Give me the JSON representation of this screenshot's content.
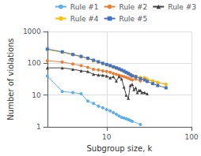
{
  "chart_data": {
    "type": "line",
    "xlabel": "Subgroup size, k",
    "ylabel": "Number of violations",
    "log": true,
    "xlim": [
      2,
      100
    ],
    "ylim": [
      1,
      1000
    ],
    "xticks": [
      10,
      100
    ],
    "yticks": [
      1,
      10,
      100,
      1000
    ],
    "grid": true,
    "legend": "upper right",
    "series": [
      {
        "name": "Rule #1",
        "color": "#5aafea",
        "marker": "circle",
        "x": [
          2,
          3,
          4,
          5,
          6,
          7,
          8,
          9,
          10,
          11,
          12,
          13,
          14,
          15,
          16,
          17,
          18,
          19,
          20,
          25
        ],
        "values": [
          40,
          13,
          12,
          11,
          6.5,
          5.5,
          4.5,
          4.0,
          3.5,
          3.2,
          2.8,
          2.5,
          2.2,
          2.0,
          1.9,
          1.8,
          1.7,
          1.6,
          1.5,
          1.2
        ]
      },
      {
        "name": "Rule #2",
        "color": "#ed7d31",
        "marker": "circle",
        "x": [
          2,
          3,
          4,
          5,
          6,
          7,
          8,
          9,
          10,
          11,
          12,
          13,
          14,
          15,
          16,
          17,
          18,
          19,
          20,
          22,
          25,
          28,
          30,
          35,
          40,
          50
        ],
        "values": [
          120,
          110,
          95,
          85,
          75,
          65,
          62,
          58,
          55,
          52,
          48,
          45,
          42,
          40,
          38,
          36,
          34,
          32,
          30,
          32,
          28,
          35,
          30,
          28,
          25,
          22
        ]
      },
      {
        "name": "Rule #3",
        "color": "#404040",
        "marker": "triangle",
        "x": [
          2,
          3,
          4,
          5,
          6,
          7,
          8,
          9,
          10,
          11,
          12,
          13,
          14,
          15,
          16,
          17,
          18,
          19,
          20,
          21,
          22,
          23,
          24,
          25,
          26,
          28,
          30
        ],
        "values": [
          72,
          72,
          65,
          58,
          55,
          45,
          43,
          42,
          40,
          35,
          38,
          28,
          38,
          32,
          18,
          10,
          8,
          20,
          22,
          15,
          17,
          12,
          14,
          14,
          12,
          12,
          11
        ]
      },
      {
        "name": "Rule #4",
        "color": "#ffc000",
        "marker": "circle",
        "x": [
          2,
          3,
          4,
          5,
          6,
          7,
          8,
          9,
          10,
          11,
          12,
          13,
          14,
          15,
          16,
          17,
          18,
          19,
          20,
          22,
          25,
          28,
          30,
          35,
          40,
          50
        ],
        "values": [
          270,
          220,
          185,
          160,
          140,
          120,
          108,
          98,
          90,
          82,
          75,
          70,
          65,
          60,
          55,
          52,
          48,
          45,
          42,
          40,
          36,
          34,
          32,
          28,
          25,
          22
        ]
      },
      {
        "name": "Rule #5",
        "color": "#4472c4",
        "marker": "square",
        "x": [
          2,
          3,
          4,
          5,
          6,
          7,
          8,
          9,
          10,
          11,
          12,
          13,
          14,
          15,
          16,
          17,
          18,
          19,
          20,
          22,
          25,
          28,
          30,
          35,
          40,
          50
        ],
        "values": [
          280,
          230,
          190,
          165,
          145,
          125,
          112,
          100,
          92,
          85,
          78,
          72,
          67,
          62,
          57,
          52,
          48,
          44,
          40,
          38,
          33,
          30,
          27,
          23,
          20,
          17
        ]
      }
    ]
  }
}
